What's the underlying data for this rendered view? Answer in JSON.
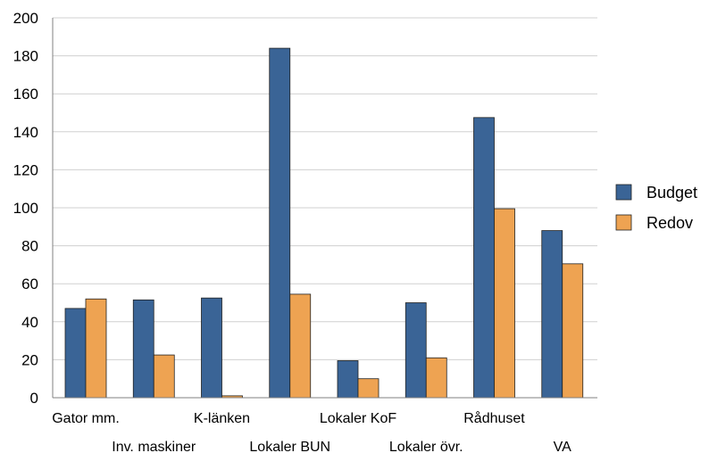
{
  "chart_data": {
    "type": "bar",
    "categories": [
      "Gator mm.",
      "Inv. maskiner",
      "K-länken",
      "Lokaler BUN",
      "Lokaler KoF",
      "Lokaler övr.",
      "Rådhuset",
      "VA"
    ],
    "series": [
      {
        "name": "Budget",
        "color": "#3a6496",
        "values": [
          47,
          51.5,
          52.5,
          184,
          19.5,
          50,
          147.5,
          88
        ]
      },
      {
        "name": "Redov",
        "color": "#eea352",
        "values": [
          52,
          22.5,
          1,
          54.5,
          10,
          21,
          99.5,
          70.5
        ]
      }
    ],
    "ylim": [
      0,
      200
    ],
    "yticks": [
      "0",
      "20",
      "40",
      "60",
      "80",
      "100",
      "120",
      "140",
      "160",
      "180",
      "200"
    ],
    "grid": true,
    "legend_position": "right",
    "title": "",
    "xlabel": "",
    "ylabel": ""
  }
}
